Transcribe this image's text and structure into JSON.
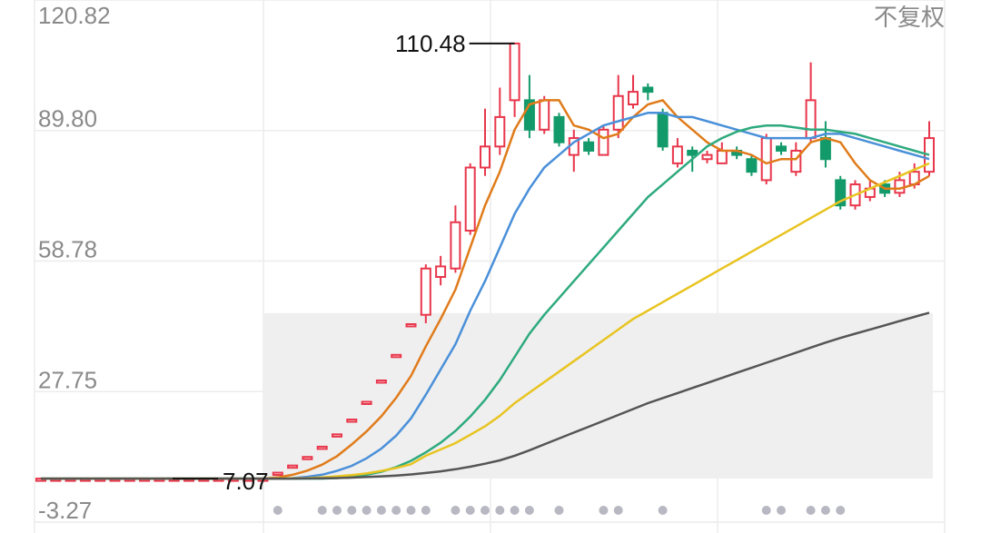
{
  "chart_data": {
    "type": "candlestick",
    "mode_label": "不复权",
    "ylim": [
      -3.27,
      120.82
    ],
    "yticks": [
      120.82,
      {
        "value": 89.8,
        "label": "89.80"
      },
      58.78,
      27.75,
      -3.27
    ],
    "grid": true,
    "shade_level": 46.4,
    "up_color": "#e8364b",
    "down_color": "#139a6b",
    "candles": {
      "open": [
        7.07,
        7.07,
        7.07,
        7.07,
        7.07,
        7.07,
        7.07,
        7.07,
        7.07,
        7.07,
        7.07,
        7.07,
        7.07,
        7.07,
        7.07,
        7.07,
        8.48,
        10.18,
        12.22,
        14.66,
        17.59,
        21.11,
        25.33,
        30.4,
        36.48,
        43.78,
        46,
        55,
        57,
        66,
        81,
        86,
        97,
        97,
        90,
        93,
        84,
        87,
        84,
        90,
        96,
        100,
        94,
        82,
        85,
        83,
        82,
        85,
        83,
        78,
        86,
        80,
        88,
        88,
        78,
        72,
        74,
        77,
        75,
        77,
        80
      ],
      "close": [
        7.07,
        7.07,
        7.07,
        7.07,
        7.07,
        7.07,
        7.07,
        7.07,
        7.07,
        7.07,
        7.07,
        7.07,
        7.07,
        7.07,
        7.07,
        7.07,
        8.48,
        10.18,
        12.22,
        14.66,
        17.59,
        21.11,
        25.33,
        30.4,
        36.48,
        43.78,
        57,
        57.5,
        68,
        81,
        86,
        93,
        110.48,
        90,
        97,
        87,
        88,
        85,
        90,
        98,
        99,
        99,
        86,
        86,
        84,
        84,
        85,
        84,
        80,
        88,
        85,
        85,
        97,
        83,
        72,
        77,
        76,
        75,
        78,
        80,
        88
      ],
      "high": [
        7.07,
        7.07,
        7.07,
        7.07,
        7.07,
        7.07,
        7.07,
        7.07,
        7.07,
        7.07,
        7.07,
        7.07,
        7.07,
        7.07,
        7.07,
        7.07,
        8.48,
        10.18,
        12.22,
        14.66,
        17.59,
        21.11,
        25.33,
        30.4,
        36.48,
        43.78,
        58,
        60,
        72,
        82,
        95,
        100,
        110.48,
        103,
        98,
        94,
        90,
        88,
        91,
        103,
        103,
        101,
        95,
        88,
        86,
        85,
        87,
        86,
        84,
        89,
        87,
        87,
        106,
        92,
        79,
        78,
        78,
        78,
        80,
        82,
        92
      ],
      "low": [
        7.07,
        7.07,
        7.07,
        7.07,
        7.07,
        7.07,
        7.07,
        7.07,
        7.07,
        7.07,
        7.07,
        7.07,
        7.07,
        7.07,
        7.07,
        7.07,
        8.48,
        10.18,
        12.22,
        14.66,
        17.59,
        21.11,
        25.33,
        30.4,
        36.48,
        43.78,
        44,
        53,
        56,
        65,
        79,
        84,
        93,
        88,
        89,
        86,
        80,
        84,
        84,
        88,
        95,
        97,
        85,
        81,
        80,
        82,
        82,
        83,
        79,
        77,
        84,
        79,
        87,
        81,
        71,
        71,
        73,
        74,
        74,
        76,
        79
      ]
    },
    "markers": [
      false,
      false,
      false,
      false,
      false,
      false,
      false,
      false,
      false,
      false,
      false,
      false,
      false,
      false,
      false,
      false,
      true,
      false,
      false,
      true,
      true,
      true,
      true,
      true,
      true,
      true,
      true,
      false,
      true,
      true,
      true,
      true,
      true,
      true,
      false,
      true,
      false,
      false,
      true,
      true,
      false,
      false,
      true,
      false,
      false,
      false,
      false,
      false,
      false,
      true,
      true,
      false,
      true,
      true,
      true,
      false,
      false,
      false,
      false,
      false,
      false
    ],
    "series": [
      {
        "color": "#e07b1a",
        "values": [
          7.07,
          7.07,
          7.07,
          7.07,
          7.07,
          7.07,
          7.07,
          7.07,
          7.07,
          7.07,
          7.07,
          7.07,
          7.07,
          7.07,
          7.07,
          7.07,
          7.35,
          7.98,
          8.96,
          10.4,
          12.4,
          15.2,
          18.3,
          21.9,
          26.3,
          31.5,
          38.5,
          45,
          52,
          62,
          72,
          80,
          90,
          96,
          97,
          97,
          91,
          90,
          88,
          89,
          93,
          96,
          97,
          93,
          90,
          87,
          85,
          85,
          84,
          82,
          83,
          83,
          87,
          88,
          87,
          82,
          78,
          76,
          76,
          77,
          79
        ]
      },
      {
        "color": "#4a90d9",
        "values": [
          7.07,
          7.07,
          7.07,
          7.07,
          7.07,
          7.07,
          7.07,
          7.07,
          7.07,
          7.07,
          7.07,
          7.07,
          7.07,
          7.07,
          7.07,
          7.07,
          7.07,
          7.2,
          7.5,
          8.0,
          8.9,
          10.1,
          11.9,
          14.2,
          17.3,
          21.4,
          27,
          33,
          39,
          47,
          54,
          62,
          70,
          76,
          81,
          84,
          87,
          89,
          91,
          92,
          93,
          94,
          94,
          93,
          93,
          92,
          91,
          90,
          89,
          88,
          88,
          88,
          88,
          89,
          89,
          88,
          87,
          86,
          85,
          84,
          83
        ]
      },
      {
        "color": "#2eaa7e",
        "values": [
          7.07,
          7.07,
          7.07,
          7.07,
          7.07,
          7.07,
          7.07,
          7.07,
          7.07,
          7.07,
          7.07,
          7.07,
          7.07,
          7.07,
          7.07,
          7.07,
          7.07,
          7.07,
          7.07,
          7.07,
          7.2,
          7.5,
          8.0,
          8.7,
          9.8,
          11.3,
          13.3,
          15.6,
          18.4,
          21.8,
          25.8,
          30.5,
          36,
          41.5,
          46,
          50,
          54,
          58,
          62,
          66,
          70,
          74,
          77,
          80,
          83,
          86,
          88,
          89.5,
          90.5,
          91,
          91,
          90.5,
          90,
          90,
          89.5,
          89,
          88,
          87,
          86,
          85,
          84
        ]
      },
      {
        "color": "#e8c421",
        "values": [
          7.07,
          7.07,
          7.07,
          7.07,
          7.07,
          7.07,
          7.07,
          7.07,
          7.07,
          7.07,
          7.07,
          7.07,
          7.07,
          7.07,
          7.07,
          7.07,
          7.1,
          7.15,
          7.2,
          7.35,
          7.6,
          7.9,
          8.3,
          8.9,
          9.6,
          10.5,
          12.5,
          14,
          15.5,
          17.5,
          19.5,
          22,
          25,
          27.5,
          30,
          32.5,
          35,
          37.5,
          40,
          42.5,
          45,
          47,
          49,
          51,
          53,
          55,
          57,
          59,
          61,
          63,
          65,
          67,
          69,
          71,
          73,
          74.5,
          76,
          77.5,
          79,
          80.5,
          82
        ]
      },
      {
        "color": "#555555",
        "values": [
          7.07,
          7.07,
          7.07,
          7.07,
          7.07,
          7.07,
          7.07,
          7.07,
          7.07,
          7.07,
          7.07,
          7.07,
          7.07,
          7.07,
          7.07,
          7.07,
          7.07,
          7.07,
          7.1,
          7.15,
          7.2,
          7.3,
          7.45,
          7.6,
          7.8,
          8.05,
          8.4,
          8.8,
          9.3,
          9.9,
          10.6,
          11.4,
          12.5,
          13.8,
          15.2,
          16.6,
          18,
          19.4,
          20.8,
          22.2,
          23.6,
          25,
          26.2,
          27.4,
          28.6,
          29.8,
          31,
          32.2,
          33.4,
          34.6,
          35.8,
          37,
          38.2,
          39.4,
          40.5,
          41.5,
          42.5,
          43.5,
          44.5,
          45.5,
          46.5
        ]
      }
    ]
  }
}
